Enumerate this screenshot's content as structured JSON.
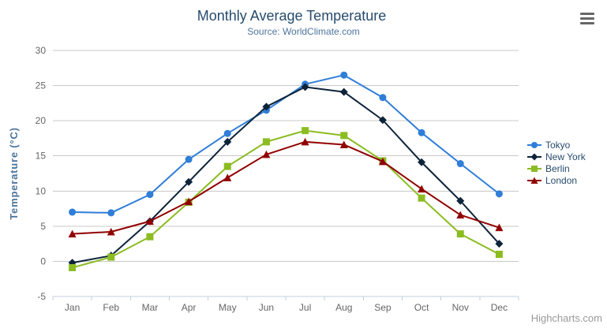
{
  "chart": {
    "title": "Monthly Average Temperature",
    "subtitle": "Source: WorldClimate.com",
    "credit": "Highcharts.com"
  },
  "icons": {
    "context_menu": "hamburger-icon"
  },
  "colors": {
    "title": "#274b6d",
    "subtitle": "#4d759e",
    "axis_title": "#4d759e",
    "axis_labels": "#666666",
    "gridline": "#c8c8c8",
    "axis_line": "#c0d0e0",
    "legend_text": "#274b6d",
    "credit_text": "#9a9a9a",
    "menu_icon": "#666666"
  },
  "chart_data": {
    "type": "line",
    "title": "Monthly Average Temperature",
    "subtitle": "Source: WorldClimate.com",
    "xlabel": "",
    "ylabel": "Temperature (°C)",
    "ylim": [
      -5,
      30
    ],
    "y_tick_step": 5,
    "y_ticks": [
      -5,
      0,
      5,
      10,
      15,
      20,
      25,
      30
    ],
    "grid": true,
    "legend_position": "right",
    "categories": [
      "Jan",
      "Feb",
      "Mar",
      "Apr",
      "May",
      "Jun",
      "Jul",
      "Aug",
      "Sep",
      "Oct",
      "Nov",
      "Dec"
    ],
    "series": [
      {
        "name": "Tokyo",
        "color": "#2f7ed8",
        "marker": "circle",
        "values": [
          7.0,
          6.9,
          9.5,
          14.5,
          18.2,
          21.5,
          25.2,
          26.5,
          23.3,
          18.3,
          13.9,
          9.6
        ]
      },
      {
        "name": "New York",
        "color": "#0d233a",
        "marker": "diamond",
        "values": [
          -0.2,
          0.8,
          5.7,
          11.3,
          17.0,
          22.0,
          24.8,
          24.1,
          20.1,
          14.1,
          8.6,
          2.5
        ]
      },
      {
        "name": "Berlin",
        "color": "#8bbc21",
        "marker": "square",
        "values": [
          -0.9,
          0.6,
          3.5,
          8.4,
          13.5,
          17.0,
          18.6,
          17.9,
          14.3,
          9.0,
          3.9,
          1.0
        ]
      },
      {
        "name": "London",
        "color": "#910000",
        "marker": "triangle",
        "values": [
          3.9,
          4.2,
          5.7,
          8.5,
          11.9,
          15.2,
          17.0,
          16.6,
          14.2,
          10.3,
          6.6,
          4.8
        ]
      }
    ]
  }
}
